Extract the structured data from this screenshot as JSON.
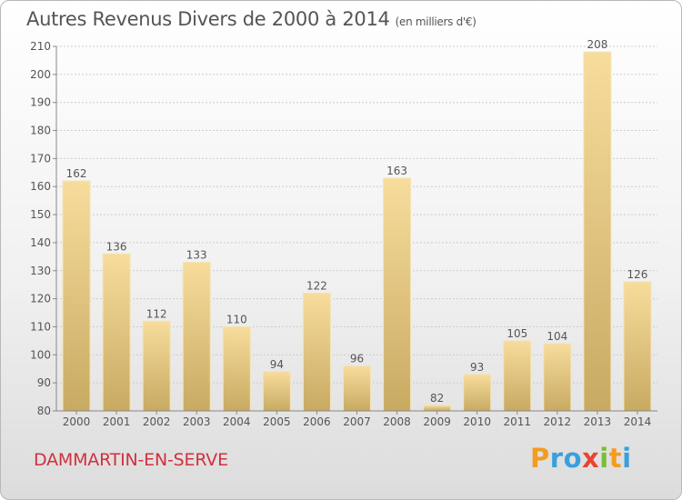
{
  "title": "Autres Revenus Divers de 2000 à 2014",
  "subtitle": "(en milliers d'€)",
  "commune": "DAMMARTIN-EN-SERVE",
  "logo": {
    "text": "Proxiti",
    "letters": [
      {
        "ch": "P",
        "color": "#f39c1f"
      },
      {
        "ch": "r",
        "color": "#3aa0dd"
      },
      {
        "ch": "o",
        "color": "#3aa0dd"
      },
      {
        "ch": "x",
        "color": "#e8452e"
      },
      {
        "ch": "i",
        "color": "#7dbb38"
      },
      {
        "ch": "t",
        "color": "#f39c1f"
      },
      {
        "ch": "i",
        "color": "#3aa0dd"
      }
    ]
  },
  "colors": {
    "bar_top": "#f7dc9c",
    "bar_bottom": "#c8aa62",
    "text": "#555555",
    "grid": "#cccccc",
    "commune": "#d0313d"
  },
  "chart_data": {
    "type": "bar",
    "title": "Autres Revenus Divers de 2000 à 2014",
    "subtitle": "(en milliers d'€)",
    "categories": [
      "2000",
      "2001",
      "2002",
      "2003",
      "2004",
      "2005",
      "2006",
      "2007",
      "2008",
      "2009",
      "2010",
      "2011",
      "2012",
      "2013",
      "2014"
    ],
    "values": [
      162,
      136,
      112,
      133,
      110,
      94,
      122,
      96,
      163,
      82,
      93,
      105,
      104,
      208,
      126
    ],
    "ylim": [
      80,
      210
    ],
    "yticks": [
      80,
      90,
      100,
      110,
      120,
      130,
      140,
      150,
      160,
      170,
      180,
      190,
      200,
      210
    ],
    "grid": true,
    "data_labels": true
  }
}
